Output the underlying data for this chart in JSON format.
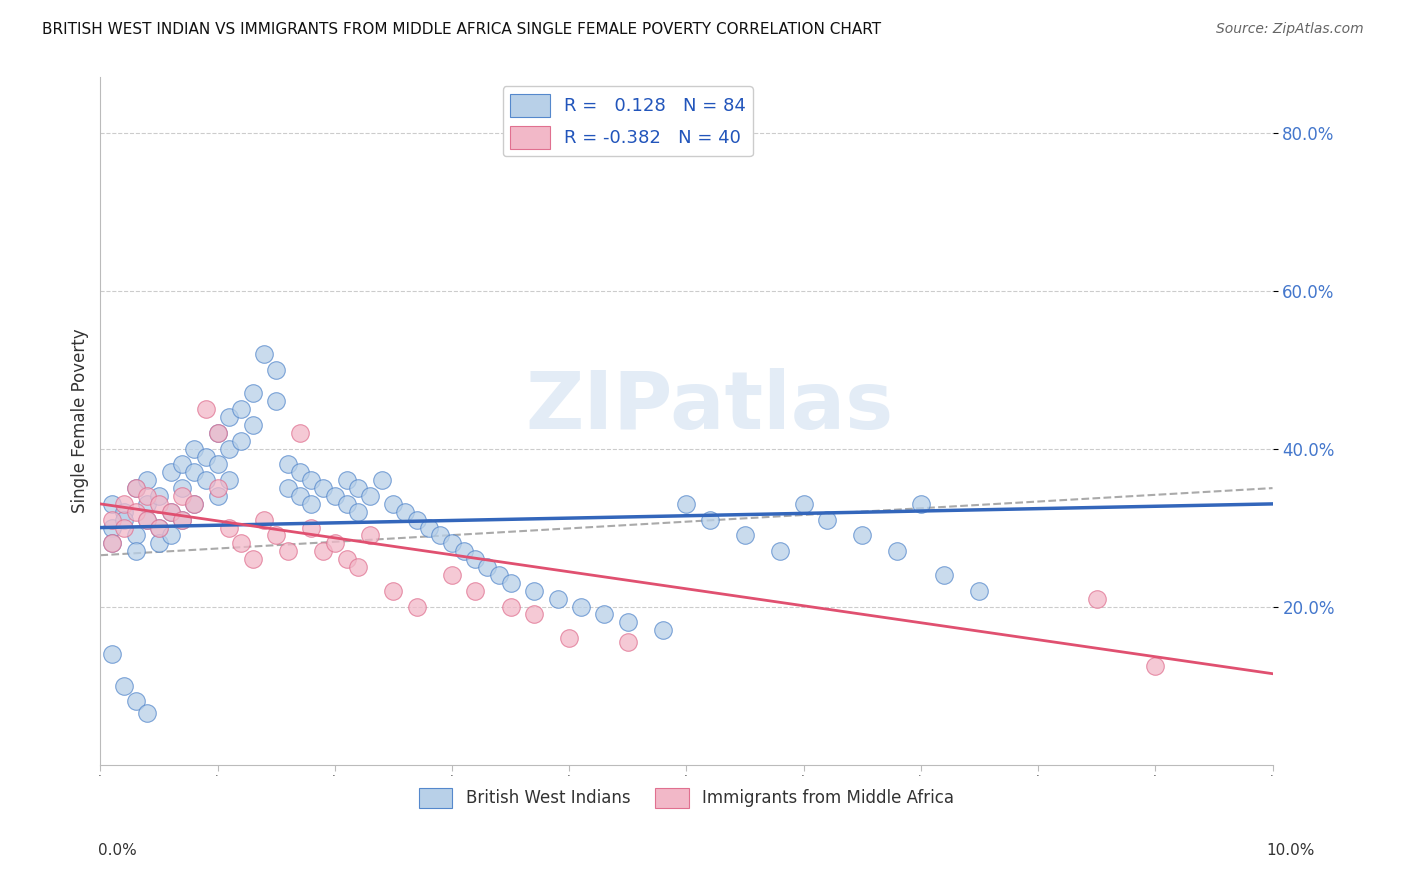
{
  "title": "BRITISH WEST INDIAN VS IMMIGRANTS FROM MIDDLE AFRICA SINGLE FEMALE POVERTY CORRELATION CHART",
  "source": "Source: ZipAtlas.com",
  "ylabel": "Single Female Poverty",
  "right_yticks": [
    0.8,
    0.6,
    0.4,
    0.2
  ],
  "right_yticklabels": [
    "80.0%",
    "60.0%",
    "40.0%",
    "20.0%"
  ],
  "xlim": [
    0.0,
    0.1
  ],
  "ylim": [
    0.0,
    0.87
  ],
  "blue_R": 0.128,
  "blue_N": 84,
  "pink_R": -0.382,
  "pink_N": 40,
  "blue_fill_color": "#b8d0e8",
  "pink_fill_color": "#f2b8c8",
  "blue_edge_color": "#5588cc",
  "pink_edge_color": "#e07090",
  "blue_line_color": "#3366bb",
  "pink_line_color": "#e05070",
  "dash_line_color": "#aaaaaa",
  "bottom_legend1": "British West Indians",
  "bottom_legend2": "Immigrants from Middle Africa",
  "blue_points_x": [
    0.001,
    0.001,
    0.001,
    0.002,
    0.002,
    0.003,
    0.003,
    0.003,
    0.004,
    0.004,
    0.004,
    0.005,
    0.005,
    0.005,
    0.006,
    0.006,
    0.006,
    0.007,
    0.007,
    0.007,
    0.008,
    0.008,
    0.008,
    0.009,
    0.009,
    0.01,
    0.01,
    0.01,
    0.011,
    0.011,
    0.011,
    0.012,
    0.012,
    0.013,
    0.013,
    0.014,
    0.015,
    0.015,
    0.016,
    0.016,
    0.017,
    0.017,
    0.018,
    0.018,
    0.019,
    0.02,
    0.021,
    0.021,
    0.022,
    0.022,
    0.023,
    0.024,
    0.025,
    0.026,
    0.027,
    0.028,
    0.029,
    0.03,
    0.031,
    0.032,
    0.033,
    0.034,
    0.035,
    0.037,
    0.039,
    0.041,
    0.043,
    0.045,
    0.048,
    0.05,
    0.052,
    0.055,
    0.058,
    0.06,
    0.062,
    0.065,
    0.068,
    0.07,
    0.072,
    0.075,
    0.001,
    0.002,
    0.003,
    0.004
  ],
  "blue_points_y": [
    0.3,
    0.33,
    0.28,
    0.32,
    0.31,
    0.35,
    0.29,
    0.27,
    0.36,
    0.33,
    0.31,
    0.34,
    0.3,
    0.28,
    0.37,
    0.32,
    0.29,
    0.38,
    0.35,
    0.31,
    0.4,
    0.37,
    0.33,
    0.39,
    0.36,
    0.42,
    0.38,
    0.34,
    0.44,
    0.4,
    0.36,
    0.45,
    0.41,
    0.47,
    0.43,
    0.52,
    0.5,
    0.46,
    0.38,
    0.35,
    0.37,
    0.34,
    0.36,
    0.33,
    0.35,
    0.34,
    0.36,
    0.33,
    0.35,
    0.32,
    0.34,
    0.36,
    0.33,
    0.32,
    0.31,
    0.3,
    0.29,
    0.28,
    0.27,
    0.26,
    0.25,
    0.24,
    0.23,
    0.22,
    0.21,
    0.2,
    0.19,
    0.18,
    0.17,
    0.33,
    0.31,
    0.29,
    0.27,
    0.33,
    0.31,
    0.29,
    0.27,
    0.33,
    0.24,
    0.22,
    0.14,
    0.1,
    0.08,
    0.065
  ],
  "pink_points_x": [
    0.001,
    0.001,
    0.002,
    0.002,
    0.003,
    0.003,
    0.004,
    0.004,
    0.005,
    0.005,
    0.006,
    0.007,
    0.007,
    0.008,
    0.009,
    0.01,
    0.01,
    0.011,
    0.012,
    0.013,
    0.014,
    0.015,
    0.016,
    0.017,
    0.018,
    0.019,
    0.02,
    0.021,
    0.022,
    0.023,
    0.025,
    0.027,
    0.03,
    0.032,
    0.035,
    0.037,
    0.04,
    0.045,
    0.085,
    0.09
  ],
  "pink_points_y": [
    0.31,
    0.28,
    0.33,
    0.3,
    0.35,
    0.32,
    0.34,
    0.31,
    0.33,
    0.3,
    0.32,
    0.34,
    0.31,
    0.33,
    0.45,
    0.42,
    0.35,
    0.3,
    0.28,
    0.26,
    0.31,
    0.29,
    0.27,
    0.42,
    0.3,
    0.27,
    0.28,
    0.26,
    0.25,
    0.29,
    0.22,
    0.2,
    0.24,
    0.22,
    0.2,
    0.19,
    0.16,
    0.155,
    0.21,
    0.125
  ],
  "blue_trend": [
    0.0,
    0.1,
    0.3,
    0.33
  ],
  "pink_trend": [
    0.0,
    0.1,
    0.33,
    0.115
  ],
  "dash_trend": [
    0.0,
    0.1,
    0.265,
    0.35
  ]
}
